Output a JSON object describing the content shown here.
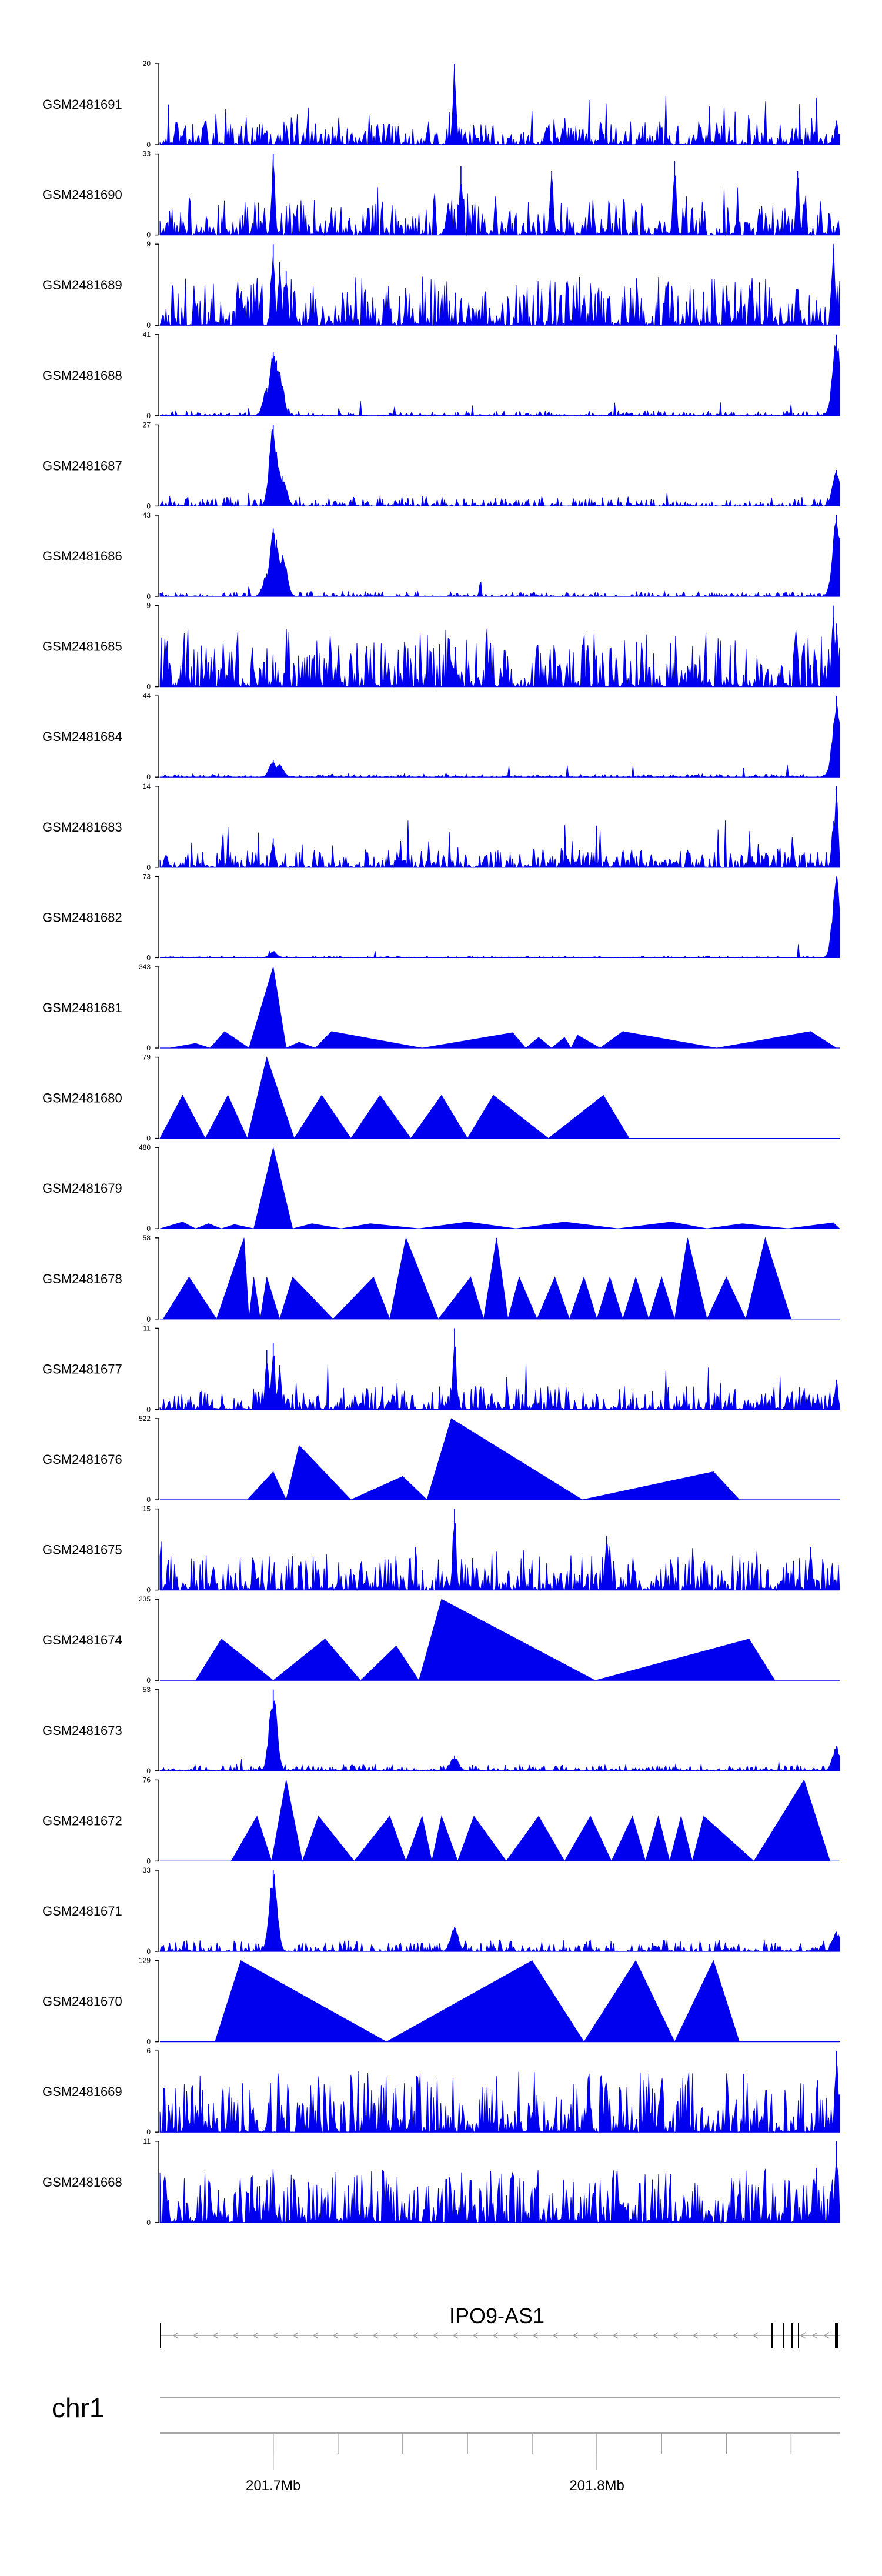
{
  "chart_data": {
    "type": "area",
    "chromosome": "chr1",
    "gene": "IPO9-AS1",
    "colors": {
      "signal": "#0000ee",
      "axis": "#000000",
      "gene_line": "#888888"
    },
    "x_range_mb": [
      201.665,
      201.875
    ],
    "x_ticks": [
      {
        "value": 201.7,
        "label": "201.7Mb"
      },
      {
        "value": 201.8,
        "label": "201.8Mb"
      }
    ],
    "tracks": [
      {
        "name": "GSM2481691",
        "ymax": 20,
        "ymax_label": "20",
        "style": "dense",
        "noise": 0.12,
        "peaks": [
          [
            201.756,
            20
          ],
          [
            201.874,
            6
          ]
        ]
      },
      {
        "name": "GSM2481690",
        "ymax": 33,
        "ymax_label": "33",
        "style": "dense-spiky",
        "noise": 0.18,
        "peaks": [
          [
            201.7,
            33
          ],
          [
            201.758,
            28
          ],
          [
            201.786,
            26
          ],
          [
            201.824,
            30
          ],
          [
            201.862,
            26
          ]
        ]
      },
      {
        "name": "GSM2481689",
        "ymax": 9,
        "ymax_label": "9",
        "style": "dense",
        "noise": 0.25,
        "peaks": [
          [
            201.7,
            9
          ],
          [
            201.702,
            7
          ],
          [
            201.704,
            6
          ],
          [
            201.873,
            9
          ]
        ]
      },
      {
        "name": "GSM2481688",
        "ymax": 41,
        "ymax_label": "41",
        "style": "sparse",
        "noise": 0.03,
        "peaks": [
          [
            201.7,
            32
          ],
          [
            201.701,
            28
          ],
          [
            201.702,
            22
          ],
          [
            201.698,
            14
          ],
          [
            201.874,
            41
          ],
          [
            201.873,
            10
          ]
        ]
      },
      {
        "name": "GSM2481687",
        "ymax": 27,
        "ymax_label": "27",
        "style": "sparse",
        "noise": 0.06,
        "peaks": [
          [
            201.7,
            27
          ],
          [
            201.701,
            18
          ],
          [
            201.703,
            10
          ],
          [
            201.874,
            12
          ]
        ]
      },
      {
        "name": "GSM2481686",
        "ymax": 43,
        "ymax_label": "43",
        "style": "sparse",
        "noise": 0.03,
        "peaks": [
          [
            201.7,
            36
          ],
          [
            201.701,
            30
          ],
          [
            201.703,
            22
          ],
          [
            201.698,
            12
          ],
          [
            201.874,
            43
          ],
          [
            201.873,
            10
          ]
        ]
      },
      {
        "name": "GSM2481685",
        "ymax": 9,
        "ymax_label": "9",
        "style": "dense",
        "noise": 0.3,
        "peaks": [
          [
            201.873,
            9
          ],
          [
            201.874,
            7
          ]
        ]
      },
      {
        "name": "GSM2481684",
        "ymax": 44,
        "ymax_label": "44",
        "style": "sparse",
        "noise": 0.02,
        "peaks": [
          [
            201.7,
            9
          ],
          [
            201.702,
            7
          ],
          [
            201.874,
            44
          ],
          [
            201.873,
            12
          ]
        ]
      },
      {
        "name": "GSM2481683",
        "ymax": 14,
        "ymax_label": "14",
        "style": "dense",
        "noise": 0.1,
        "peaks": [
          [
            201.7,
            5
          ],
          [
            201.874,
            14
          ],
          [
            201.873,
            8
          ]
        ]
      },
      {
        "name": "GSM2481682",
        "ymax": 73,
        "ymax_label": "73",
        "style": "sparse",
        "noise": 0.01,
        "peaks": [
          [
            201.7,
            6
          ],
          [
            201.874,
            73
          ],
          [
            201.873,
            10
          ]
        ]
      },
      {
        "name": "GSM2481681",
        "ymax": 343,
        "ymax_label": "343",
        "style": "triangles",
        "noise": 0,
        "peaks": [
          [
            201.676,
            20
          ],
          [
            201.685,
            70
          ],
          [
            201.7,
            343
          ],
          [
            201.708,
            25
          ],
          [
            201.718,
            70
          ],
          [
            201.774,
            65
          ],
          [
            201.782,
            45
          ],
          [
            201.79,
            45
          ],
          [
            201.794,
            55
          ],
          [
            201.808,
            70
          ],
          [
            201.866,
            70
          ]
        ]
      },
      {
        "name": "GSM2481680",
        "ymax": 79,
        "ymax_label": "79",
        "style": "triangles",
        "noise": 0,
        "peaks": [
          [
            201.672,
            42
          ],
          [
            201.686,
            42
          ],
          [
            201.698,
            79
          ],
          [
            201.715,
            42
          ],
          [
            201.733,
            42
          ],
          [
            201.752,
            42
          ],
          [
            201.768,
            42
          ],
          [
            201.802,
            42
          ]
        ]
      },
      {
        "name": "GSM2481679",
        "ymax": 480,
        "ymax_label": "480",
        "style": "triangles",
        "noise": 0,
        "peaks": [
          [
            201.672,
            40
          ],
          [
            201.68,
            30
          ],
          [
            201.688,
            25
          ],
          [
            201.7,
            480
          ],
          [
            201.712,
            30
          ],
          [
            201.73,
            30
          ],
          [
            201.76,
            40
          ],
          [
            201.79,
            40
          ],
          [
            201.823,
            40
          ],
          [
            201.845,
            30
          ],
          [
            201.873,
            35
          ]
        ]
      },
      {
        "name": "GSM2481678",
        "ymax": 58,
        "ymax_label": "58",
        "style": "triangles",
        "noise": 0,
        "peaks": [
          [
            201.674,
            30
          ],
          [
            201.691,
            58
          ],
          [
            201.694,
            30
          ],
          [
            201.698,
            30
          ],
          [
            201.706,
            30
          ],
          [
            201.731,
            30
          ],
          [
            201.741,
            58
          ],
          [
            201.761,
            30
          ],
          [
            201.769,
            58
          ],
          [
            201.776,
            30
          ],
          [
            201.787,
            30
          ],
          [
            201.796,
            30
          ],
          [
            201.804,
            30
          ],
          [
            201.812,
            30
          ],
          [
            201.82,
            30
          ],
          [
            201.828,
            58
          ],
          [
            201.84,
            30
          ],
          [
            201.852,
            58
          ]
        ]
      },
      {
        "name": "GSM2481677",
        "ymax": 11,
        "ymax_label": "11",
        "style": "dense",
        "noise": 0.12,
        "peaks": [
          [
            201.698,
            8
          ],
          [
            201.7,
            9
          ],
          [
            201.702,
            6
          ],
          [
            201.756,
            11
          ],
          [
            201.874,
            4
          ]
        ]
      },
      {
        "name": "GSM2481676",
        "ymax": 522,
        "ymax_label": "522",
        "style": "triangles",
        "noise": 0,
        "peaks": [
          [
            201.7,
            180
          ],
          [
            201.708,
            350
          ],
          [
            201.74,
            150
          ],
          [
            201.755,
            522
          ],
          [
            201.836,
            180
          ]
        ]
      },
      {
        "name": "GSM2481675",
        "ymax": 15,
        "ymax_label": "15",
        "style": "dense",
        "noise": 0.18,
        "peaks": [
          [
            201.756,
            15
          ],
          [
            201.803,
            10
          ],
          [
            201.866,
            8
          ]
        ]
      },
      {
        "name": "GSM2481674",
        "ymax": 235,
        "ymax_label": "235",
        "style": "triangles",
        "noise": 0,
        "peaks": [
          [
            201.684,
            120
          ],
          [
            201.716,
            120
          ],
          [
            201.738,
            100
          ],
          [
            201.752,
            235
          ],
          [
            201.847,
            120
          ]
        ]
      },
      {
        "name": "GSM2481673",
        "ymax": 53,
        "ymax_label": "53",
        "style": "sparse",
        "noise": 0.04,
        "peaks": [
          [
            201.7,
            53
          ],
          [
            201.756,
            10
          ],
          [
            201.874,
            16
          ]
        ]
      },
      {
        "name": "GSM2481672",
        "ymax": 76,
        "ymax_label": "76",
        "style": "triangles",
        "noise": 0,
        "peaks": [
          [
            201.695,
            42
          ],
          [
            201.704,
            76
          ],
          [
            201.714,
            42
          ],
          [
            201.736,
            42
          ],
          [
            201.746,
            42
          ],
          [
            201.752,
            42
          ],
          [
            201.762,
            42
          ],
          [
            201.782,
            42
          ],
          [
            201.798,
            42
          ],
          [
            201.811,
            42
          ],
          [
            201.819,
            42
          ],
          [
            201.826,
            42
          ],
          [
            201.833,
            42
          ],
          [
            201.864,
            76
          ]
        ]
      },
      {
        "name": "GSM2481671",
        "ymax": 33,
        "ymax_label": "33",
        "style": "sparse",
        "noise": 0.07,
        "peaks": [
          [
            201.7,
            33
          ],
          [
            201.756,
            10
          ],
          [
            201.874,
            8
          ]
        ]
      },
      {
        "name": "GSM2481670",
        "ymax": 129,
        "ymax_label": "129",
        "style": "triangles",
        "noise": 0,
        "peaks": [
          [
            201.69,
            129
          ],
          [
            201.78,
            129
          ],
          [
            201.812,
            129
          ],
          [
            201.836,
            129
          ]
        ]
      },
      {
        "name": "GSM2481669",
        "ymax": 6,
        "ymax_label": "6",
        "style": "dense",
        "noise": 0.32,
        "peaks": [
          [
            201.874,
            6
          ]
        ]
      },
      {
        "name": "GSM2481668",
        "ymax": 11,
        "ymax_label": "11",
        "style": "dense",
        "noise": 0.28,
        "peaks": [
          [
            201.874,
            11
          ]
        ]
      }
    ]
  }
}
